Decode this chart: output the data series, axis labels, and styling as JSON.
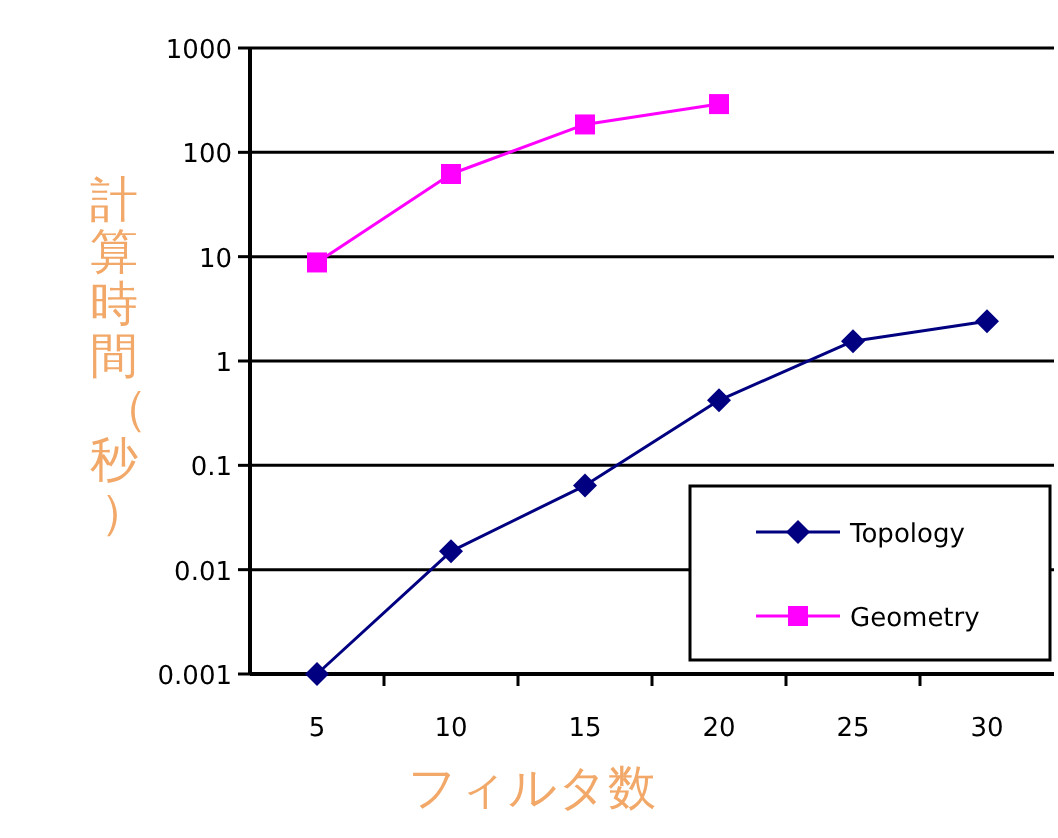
{
  "chart_data": {
    "type": "line",
    "xlabel": "フィルタ数",
    "ylabel": "計算時間（秒）",
    "categories": [
      "5",
      "10",
      "15",
      "20",
      "25",
      "30"
    ],
    "series": [
      {
        "name": "Topology",
        "color": "#000080",
        "marker": "diamond",
        "values": [
          0.001,
          0.015,
          0.064,
          0.42,
          1.55,
          2.4
        ]
      },
      {
        "name": "Geometry",
        "color": "#ff00ff",
        "marker": "square",
        "values": [
          8.8,
          62,
          185,
          290,
          null,
          null
        ]
      }
    ],
    "ylim": [
      0.001,
      1000
    ],
    "yticks": [
      0.001,
      0.01,
      0.1,
      1,
      10,
      100,
      1000
    ],
    "log": "y",
    "grid": "y",
    "legend": "bottom right"
  }
}
